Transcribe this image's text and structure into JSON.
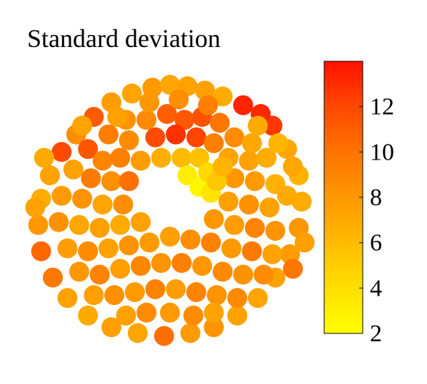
{
  "chart_data": {
    "type": "scatter",
    "title": "Standard deviation",
    "colorbar": {
      "min": 2,
      "max": 14,
      "ticks": [
        2,
        4,
        6,
        8,
        10,
        12
      ],
      "colormap": [
        "#ffff00",
        "#ffd700",
        "#ffa600",
        "#ff7a00",
        "#ff4a00",
        "#ff1100"
      ]
    },
    "points": [
      [
        -0.12,
        0.78,
        7.5
      ],
      [
        0.0,
        0.8,
        6.8
      ],
      [
        0.12,
        0.79,
        7.0
      ],
      [
        0.24,
        0.76,
        7.2
      ],
      [
        0.36,
        0.72,
        6.5
      ],
      [
        0.5,
        0.66,
        13.2
      ],
      [
        -0.26,
        0.74,
        6.9
      ],
      [
        -0.4,
        0.68,
        7.3
      ],
      [
        -0.52,
        0.58,
        10.8
      ],
      [
        -0.64,
        0.46,
        8.1
      ],
      [
        -0.74,
        0.34,
        11.6
      ],
      [
        -0.82,
        0.18,
        7.0
      ],
      [
        -0.88,
        0.02,
        6.4
      ],
      [
        -0.9,
        -0.16,
        7.6
      ],
      [
        -0.88,
        -0.34,
        10.2
      ],
      [
        -0.8,
        -0.52,
        9.3
      ],
      [
        -0.7,
        -0.66,
        7.0
      ],
      [
        -0.56,
        -0.78,
        6.6
      ],
      [
        -0.4,
        -0.86,
        7.2
      ],
      [
        -0.22,
        -0.9,
        6.8
      ],
      [
        -0.04,
        -0.92,
        9.8
      ],
      [
        0.14,
        -0.9,
        7.4
      ],
      [
        0.3,
        -0.86,
        7.8
      ],
      [
        0.46,
        -0.78,
        7.1
      ],
      [
        0.6,
        -0.66,
        6.9
      ],
      [
        0.72,
        -0.52,
        7.0
      ],
      [
        0.82,
        -0.36,
        7.3
      ],
      [
        0.88,
        -0.18,
        7.6
      ],
      [
        0.9,
        0.0,
        6.5
      ],
      [
        0.88,
        0.18,
        6.2
      ],
      [
        0.8,
        0.36,
        6.8
      ],
      [
        0.7,
        0.52,
        12.4
      ],
      [
        0.62,
        0.6,
        13.0
      ],
      [
        -0.3,
        0.56,
        7.8
      ],
      [
        -0.16,
        0.56,
        8.4
      ],
      [
        -0.02,
        0.6,
        10.6
      ],
      [
        0.1,
        0.56,
        10.9
      ],
      [
        0.22,
        0.58,
        11.2
      ],
      [
        0.34,
        0.54,
        9.4
      ],
      [
        -0.42,
        0.46,
        9.0
      ],
      [
        -0.28,
        0.42,
        8.2
      ],
      [
        -0.1,
        0.44,
        11.5
      ],
      [
        0.04,
        0.46,
        12.6
      ],
      [
        0.18,
        0.44,
        11.8
      ],
      [
        0.3,
        0.4,
        8.9
      ],
      [
        0.44,
        0.44,
        8.3
      ],
      [
        0.56,
        0.4,
        6.7
      ],
      [
        -0.56,
        0.36,
        11.0
      ],
      [
        -0.46,
        0.28,
        8.6
      ],
      [
        -0.34,
        0.3,
        8.9
      ],
      [
        -0.2,
        0.28,
        7.3
      ],
      [
        -0.06,
        0.3,
        6.4
      ],
      [
        0.08,
        0.3,
        5.8
      ],
      [
        0.4,
        0.3,
        6.9
      ],
      [
        0.54,
        0.28,
        7.1
      ],
      [
        0.66,
        0.3,
        6.5
      ],
      [
        -0.66,
        0.22,
        7.0
      ],
      [
        -0.54,
        0.16,
        9.2
      ],
      [
        -0.4,
        0.14,
        8.0
      ],
      [
        -0.28,
        0.14,
        9.7
      ],
      [
        0.12,
        0.18,
        3.1
      ],
      [
        0.2,
        0.1,
        2.6
      ],
      [
        0.28,
        0.06,
        3.6
      ],
      [
        0.44,
        0.16,
        7.6
      ],
      [
        0.58,
        0.14,
        7.4
      ],
      [
        0.72,
        0.12,
        6.2
      ],
      [
        -0.74,
        0.04,
        7.4
      ],
      [
        -0.6,
        0.02,
        7.8
      ],
      [
        -0.46,
        -0.02,
        6.9
      ],
      [
        -0.32,
        -0.02,
        8.1
      ],
      [
        0.4,
        0.0,
        7.2
      ],
      [
        0.54,
        -0.02,
        8.0
      ],
      [
        0.68,
        -0.04,
        7.0
      ],
      [
        0.8,
        0.04,
        6.6
      ],
      [
        -0.76,
        -0.14,
        7.9
      ],
      [
        -0.62,
        -0.16,
        6.8
      ],
      [
        -0.48,
        -0.18,
        7.2
      ],
      [
        -0.34,
        -0.16,
        6.6
      ],
      [
        -0.2,
        -0.14,
        7.0
      ],
      [
        0.3,
        -0.12,
        7.6
      ],
      [
        0.44,
        -0.16,
        7.3
      ],
      [
        0.58,
        -0.18,
        8.6
      ],
      [
        0.72,
        -0.2,
        7.8
      ],
      [
        -0.7,
        -0.32,
        7.3
      ],
      [
        -0.56,
        -0.34,
        8.2
      ],
      [
        -0.42,
        -0.32,
        7.0
      ],
      [
        -0.28,
        -0.3,
        7.9
      ],
      [
        -0.14,
        -0.28,
        7.4
      ],
      [
        0.0,
        -0.24,
        7.2
      ],
      [
        0.14,
        -0.26,
        8.1
      ],
      [
        0.28,
        -0.28,
        8.8
      ],
      [
        0.42,
        -0.32,
        7.5
      ],
      [
        0.56,
        -0.34,
        9.2
      ],
      [
        0.7,
        -0.36,
        7.0
      ],
      [
        -0.62,
        -0.48,
        7.6
      ],
      [
        -0.48,
        -0.5,
        8.7
      ],
      [
        -0.34,
        -0.46,
        7.2
      ],
      [
        -0.2,
        -0.44,
        8.5
      ],
      [
        -0.06,
        -0.42,
        7.8
      ],
      [
        0.08,
        -0.42,
        8.9
      ],
      [
        0.22,
        -0.44,
        7.6
      ],
      [
        0.36,
        -0.48,
        8.4
      ],
      [
        0.5,
        -0.5,
        7.9
      ],
      [
        0.64,
        -0.5,
        8.2
      ],
      [
        -0.52,
        -0.64,
        7.2
      ],
      [
        -0.38,
        -0.64,
        8.0
      ],
      [
        -0.24,
        -0.62,
        7.4
      ],
      [
        -0.1,
        -0.6,
        8.8
      ],
      [
        0.04,
        -0.6,
        7.3
      ],
      [
        0.18,
        -0.62,
        8.6
      ],
      [
        0.32,
        -0.64,
        7.8
      ],
      [
        0.46,
        -0.66,
        8.4
      ],
      [
        -0.3,
        -0.78,
        7.1
      ],
      [
        -0.16,
        -0.76,
        8.2
      ],
      [
        0.0,
        -0.76,
        7.5
      ],
      [
        0.16,
        -0.78,
        8.3
      ],
      [
        0.3,
        -0.76,
        7.0
      ],
      [
        -0.14,
        0.68,
        7.6
      ],
      [
        0.06,
        0.7,
        8.1
      ],
      [
        0.26,
        0.66,
        9.0
      ],
      [
        -0.36,
        0.58,
        7.1
      ],
      [
        -0.6,
        0.52,
        6.9
      ],
      [
        0.6,
        0.52,
        6.6
      ],
      [
        0.74,
        0.4,
        6.0
      ],
      [
        0.84,
        0.24,
        6.8
      ],
      [
        -0.86,
        0.3,
        6.6
      ],
      [
        -0.92,
        -0.04,
        7.1
      ],
      [
        0.92,
        -0.28,
        7.2
      ],
      [
        0.84,
        -0.46,
        9.4
      ],
      [
        0.2,
        0.3,
        5.5
      ],
      [
        0.26,
        0.2,
        4.3
      ],
      [
        0.32,
        0.14,
        5.2
      ],
      [
        0.36,
        0.24,
        6.1
      ]
    ]
  }
}
